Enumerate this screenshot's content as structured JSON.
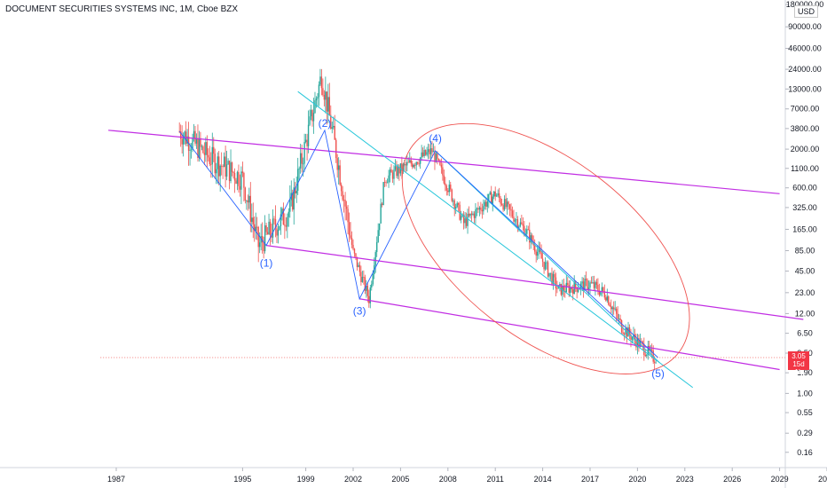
{
  "header": {
    "title": "DOCUMENT SECURITIES SYSTEMS INC, 1M, Cboe BZX",
    "currency": "USD"
  },
  "price_tag": {
    "price": "3.05",
    "countdown": "15d 1h"
  },
  "colors": {
    "up": "#26a69a",
    "down": "#ef5350",
    "channel": "#c12de3",
    "trendline": "#26c6da",
    "wave_line": "#2962ff",
    "ellipse": "#ef5350",
    "last_price_line": "#ef5350",
    "wave_label": "#2962ff"
  },
  "chart_data": {
    "type": "candlestick",
    "title": "DOCUMENT SECURITIES SYSTEMS INC, 1M, Cboe BZX",
    "y_scale": "log",
    "x_ticks": [
      "1987",
      "1995",
      "1999",
      "2002",
      "2005",
      "2008",
      "2011",
      "2014",
      "2017",
      "2020",
      "2023",
      "2026",
      "2029",
      "2032"
    ],
    "y_ticks": [
      "180000.00",
      "90000.00",
      "46000.00",
      "24000.00",
      "13000.00",
      "7000.00",
      "3800.00",
      "2000.00",
      "1100.00",
      "600.00",
      "325.00",
      "165.00",
      "85.00",
      "45.00",
      "23.00",
      "12.00",
      "6.50",
      "3.50",
      "1.90",
      "1.00",
      "0.55",
      "0.29",
      "0.16"
    ],
    "last_price": 3.05,
    "approx_price_path": [
      {
        "year": 1991,
        "close": 3500
      },
      {
        "year": 1993,
        "close": 1500
      },
      {
        "year": 1995,
        "close": 800
      },
      {
        "year": 1996,
        "close": 100
      },
      {
        "year": 1998,
        "close": 300
      },
      {
        "year": 2000,
        "close": 20000
      },
      {
        "year": 2001,
        "close": 1500
      },
      {
        "year": 2002,
        "close": 80
      },
      {
        "year": 2003,
        "close": 19
      },
      {
        "year": 2004,
        "close": 800
      },
      {
        "year": 2007,
        "close": 1900
      },
      {
        "year": 2009,
        "close": 200
      },
      {
        "year": 2011,
        "close": 500
      },
      {
        "year": 2013,
        "close": 150
      },
      {
        "year": 2015,
        "close": 25
      },
      {
        "year": 2017,
        "close": 30
      },
      {
        "year": 2018,
        "close": 22
      },
      {
        "year": 2019,
        "close": 8
      },
      {
        "year": 2021,
        "close": 3.05
      }
    ],
    "wave_labels": [
      {
        "label": "(1)",
        "year": 1996.5,
        "price": 85
      },
      {
        "label": "(2)",
        "year": 2000.2,
        "price": 3600
      },
      {
        "label": "(3)",
        "year": 2002.4,
        "price": 19
      },
      {
        "label": "(4)",
        "year": 2007.2,
        "price": 1900
      },
      {
        "label": "(5)",
        "year": 2021.3,
        "price": 3.05
      }
    ]
  }
}
